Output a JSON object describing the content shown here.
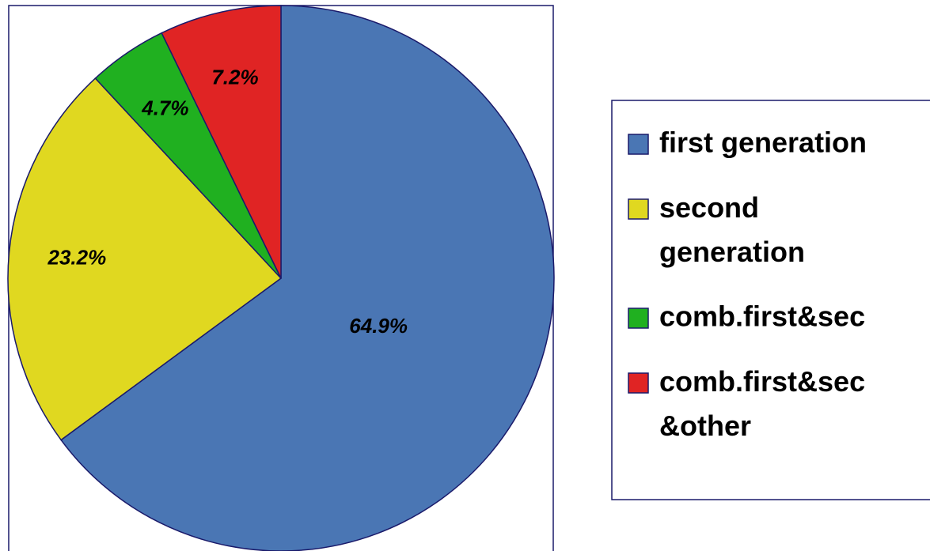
{
  "chart_data": {
    "type": "pie",
    "categories": [
      "first generation",
      "second generation",
      "comb.first&sec",
      "comb.first&sec&other"
    ],
    "values": [
      64.9,
      23.2,
      4.7,
      7.2
    ],
    "value_labels": [
      "64.9%",
      "23.2%",
      "4.7%",
      "7.2%"
    ],
    "colors": [
      "#4a76b4",
      "#e0d820",
      "#20b020",
      "#e02424"
    ],
    "legend": "right"
  }
}
